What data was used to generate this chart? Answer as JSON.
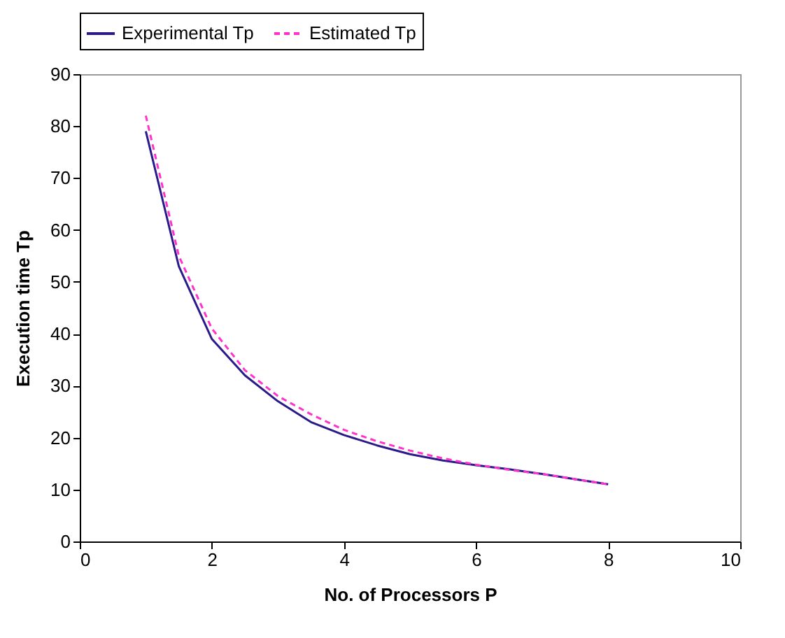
{
  "chart_data": {
    "type": "line",
    "xlabel": "No. of Processors P",
    "ylabel": "Execution time Tp",
    "x": [
      1,
      1.5,
      2,
      2.5,
      3,
      3.5,
      4,
      4.5,
      5,
      5.5,
      6,
      6.5,
      7,
      7.5,
      8
    ],
    "series": [
      {
        "name": "Experimental Tp",
        "color": "#2a1a8a",
        "line_style": "solid",
        "values": [
          79,
          53,
          39,
          32,
          27,
          23,
          20.5,
          18.5,
          16.8,
          15.6,
          14.7,
          13.9,
          13,
          12,
          11
        ]
      },
      {
        "name": "Estimated Tp",
        "color": "#ff33cc",
        "line_style": "dashed",
        "values": [
          82,
          55,
          41,
          33,
          28,
          24.5,
          21.5,
          19.3,
          17.5,
          16,
          14.8,
          13.8,
          13,
          12,
          11
        ]
      }
    ],
    "xlim": [
      0,
      10
    ],
    "xticks": [
      0,
      2,
      4,
      6,
      8,
      10
    ],
    "ylim": [
      0,
      90
    ],
    "yticks": [
      0,
      10,
      20,
      30,
      40,
      50,
      60,
      70,
      80,
      90
    ],
    "grid": false,
    "legend": "top",
    "marker": "none"
  }
}
